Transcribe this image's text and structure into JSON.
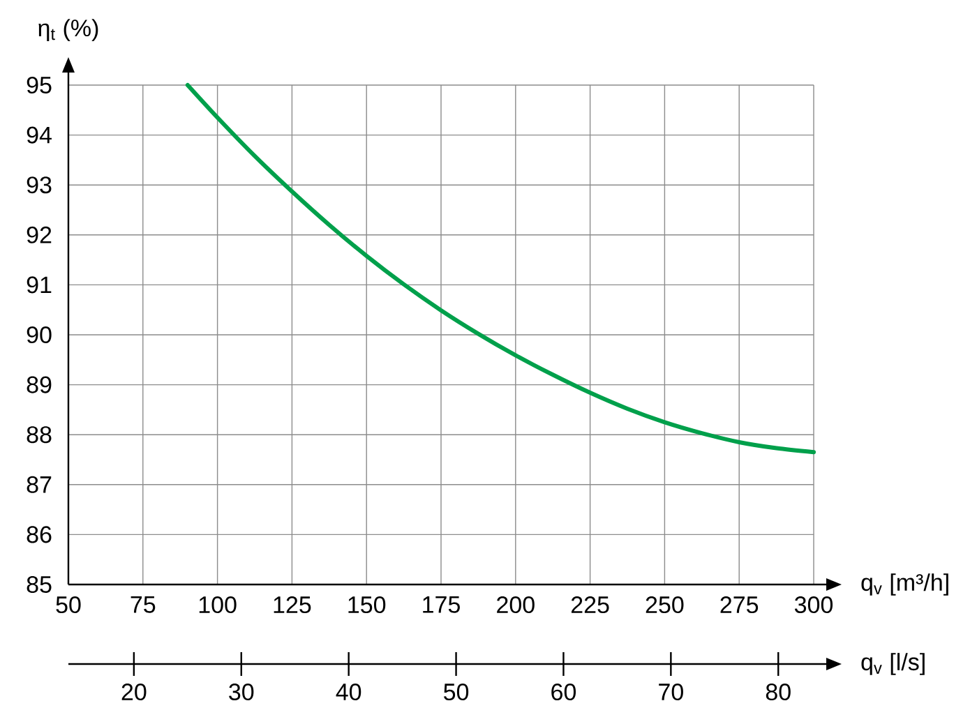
{
  "chart_data": {
    "type": "line",
    "xlabel": "q$_{v}$ [m³/h]",
    "ylabel": "η$_{t}$ (%)",
    "x2label": "q$_{v}$ [l/s]",
    "x": [
      90,
      100,
      112.5,
      125,
      137.5,
      150,
      162.5,
      175,
      187.5,
      200,
      212.5,
      225,
      237.5,
      250,
      262.5,
      275,
      287.5,
      300
    ],
    "values": [
      95,
      94.35,
      93.58,
      92.87,
      92.2,
      91.58,
      91.01,
      90.49,
      90.02,
      89.59,
      89.2,
      88.84,
      88.52,
      88.25,
      88.03,
      87.85,
      87.73,
      87.65
    ],
    "color": "#00a04b",
    "xlim": [
      50,
      300
    ],
    "ylim": [
      85,
      95
    ],
    "xticks": [
      50,
      75,
      100,
      125,
      150,
      175,
      200,
      225,
      250,
      275,
      300
    ],
    "yticks": [
      85,
      86,
      87,
      88,
      89,
      90,
      91,
      92,
      93,
      94,
      95
    ],
    "x2lim": [
      13.9,
      83.3
    ],
    "x2ticks": [
      20,
      30,
      40,
      50,
      60,
      70,
      80
    ],
    "grid": true,
    "marker": "none",
    "line_style": "solid"
  }
}
